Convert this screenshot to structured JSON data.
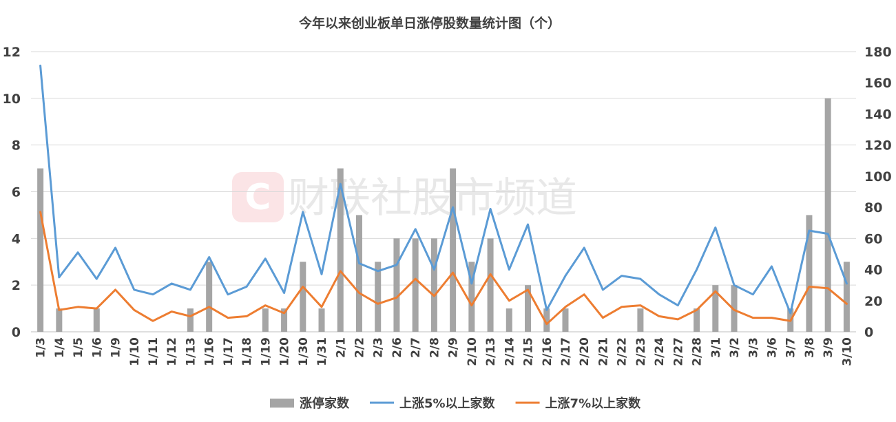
{
  "chart_data": {
    "type": "bar",
    "title": "今年以来创业板单日涨停股数量统计图（个）",
    "watermark": "财联社股市频道",
    "watermark_logo_char": "C",
    "categories": [
      "1/3",
      "1/4",
      "1/5",
      "1/6",
      "1/9",
      "1/10",
      "1/11",
      "1/12",
      "1/13",
      "1/16",
      "1/17",
      "1/18",
      "1/19",
      "1/20",
      "1/30",
      "1/31",
      "2/1",
      "2/2",
      "2/3",
      "2/6",
      "2/7",
      "2/8",
      "2/9",
      "2/10",
      "2/13",
      "2/14",
      "2/15",
      "2/16",
      "2/17",
      "2/20",
      "2/21",
      "2/22",
      "2/23",
      "2/24",
      "2/27",
      "2/28",
      "3/1",
      "3/2",
      "3/3",
      "3/6",
      "3/7",
      "3/8",
      "3/9",
      "3/10"
    ],
    "y_left": {
      "min": 0,
      "max": 12,
      "step": 2,
      "ticks": [
        "0",
        "2",
        "4",
        "6",
        "8",
        "10",
        "12"
      ]
    },
    "y_right": {
      "min": 0,
      "max": 180,
      "step": 20,
      "ticks": [
        "0",
        "20",
        "40",
        "60",
        "80",
        "100",
        "120",
        "140",
        "160",
        "180"
      ]
    },
    "grid": true,
    "legend_position": "bottom",
    "series": [
      {
        "name": "涨停家数",
        "type": "bar",
        "axis": "left",
        "color": "#a5a5a5",
        "values": [
          7,
          1,
          0,
          1,
          0,
          0,
          0,
          0,
          1,
          3,
          0,
          0,
          1,
          1,
          3,
          1,
          7,
          5,
          3,
          4,
          4,
          4,
          7,
          3,
          4,
          1,
          2,
          1,
          1,
          0,
          0,
          0,
          1,
          0,
          0,
          1,
          2,
          2,
          0,
          0,
          1,
          5,
          10,
          3
        ]
      },
      {
        "name": "上涨5%以上家数",
        "type": "line",
        "axis": "right",
        "color": "#5b9bd5",
        "values": [
          171,
          35,
          51,
          34,
          54,
          27,
          24,
          31,
          27,
          48,
          24,
          29,
          47,
          25,
          77,
          37,
          95,
          44,
          39,
          43,
          66,
          40,
          80,
          31,
          79,
          40,
          69,
          14,
          36,
          54,
          27,
          36,
          34,
          24,
          17,
          40,
          67,
          30,
          24,
          42,
          12,
          65,
          63,
          31
        ]
      },
      {
        "name": "上涨7%以上家数",
        "type": "line",
        "axis": "right",
        "color": "#ed7d31",
        "values": [
          77,
          14,
          16,
          15,
          27,
          14,
          7,
          13,
          10,
          16,
          9,
          10,
          17,
          12,
          29,
          16,
          39,
          25,
          18,
          22,
          34,
          23,
          38,
          17,
          37,
          20,
          27,
          5,
          16,
          24,
          9,
          16,
          17,
          10,
          8,
          14,
          26,
          14,
          9,
          9,
          7,
          29,
          28,
          18
        ]
      }
    ]
  }
}
